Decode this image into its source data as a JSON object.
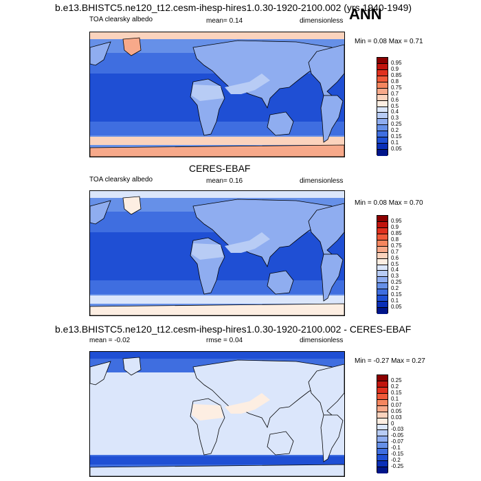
{
  "season_label": "ANN",
  "chart_data": [
    {
      "type": "heatmap",
      "title": "b.e13.BHISTC5.ne120_t12.cesm-ihesp-hires1.0.30-1920-2100.002 (yrs 1940-1949)",
      "left_label": "TOA clearsky albedo",
      "center_label": "mean=  0.14",
      "mean": 0.14,
      "right_label": "dimensionless",
      "stats_label": "Min =  0.08 Max =  0.71",
      "min": 0.08,
      "max": 0.71,
      "levels": [
        "0.95",
        "0.9",
        "0.85",
        "0.8",
        "0.75",
        "0.7",
        "0.6",
        "0.5",
        "0.4",
        "0.3",
        "0.25",
        "0.2",
        "0.15",
        "0.1",
        "0.05"
      ],
      "colors": [
        "#8b0000",
        "#c1140d",
        "#e0301e",
        "#f05a3a",
        "#f5865f",
        "#f7a98a",
        "#fbd3bd",
        "#fdeee2",
        "#dbe6fb",
        "#b8ccf5",
        "#8fadf0",
        "#6690e8",
        "#3f6ee0",
        "#1f4fd4",
        "#0a2fb8",
        "#00158a"
      ],
      "map_colors": {
        "ocean_tropics": "#1f4fd4",
        "ocean_mid": "#3f6ee0",
        "ocean_high": "#6690e8",
        "land": "#8fadf0",
        "desert": "#b8ccf5",
        "ice": "#f7a98a",
        "sea_ice": "#fbd3bd"
      }
    },
    {
      "type": "heatmap",
      "title": "CERES-EBAF",
      "left_label": "TOA clearsky albedo",
      "center_label": "mean=  0.16",
      "mean": 0.16,
      "right_label": "dimensionless",
      "stats_label": "Min =  0.08 Max =  0.70",
      "min": 0.08,
      "max": 0.7,
      "levels": [
        "0.95",
        "0.9",
        "0.85",
        "0.8",
        "0.75",
        "0.7",
        "0.6",
        "0.5",
        "0.4",
        "0.3",
        "0.25",
        "0.2",
        "0.15",
        "0.1",
        "0.05"
      ],
      "colors": [
        "#8b0000",
        "#c1140d",
        "#e0301e",
        "#f05a3a",
        "#f5865f",
        "#f7a98a",
        "#fbd3bd",
        "#fdeee2",
        "#dbe6fb",
        "#b8ccf5",
        "#8fadf0",
        "#6690e8",
        "#3f6ee0",
        "#1f4fd4",
        "#0a2fb8",
        "#00158a"
      ],
      "map_colors": {
        "ocean_tropics": "#1f4fd4",
        "ocean_mid": "#3f6ee0",
        "ocean_high": "#6690e8",
        "land": "#8fadf0",
        "desert": "#b8ccf5",
        "ice": "#fdeee2",
        "sea_ice": "#dbe6fb"
      }
    },
    {
      "type": "heatmap",
      "title": "b.e13.BHISTC5.ne120_t12.cesm-ihesp-hires1.0.30-1920-2100.002 - CERES-EBAF",
      "left_label": "mean =  -0.02",
      "mean": -0.02,
      "center_label": "rmse =   0.04",
      "rmse": 0.04,
      "right_label": "dimensionless",
      "stats_label": "Min =  -0.27 Max =  0.27",
      "min": -0.27,
      "max": 0.27,
      "levels": [
        "0.25",
        "0.2",
        "0.15",
        "0.1",
        "0.07",
        "0.05",
        "0.03",
        "0",
        "-0.03",
        "-0.05",
        "-0.07",
        "-0.1",
        "-0.15",
        "-0.2",
        "-0.25"
      ],
      "colors": [
        "#8b0000",
        "#c1140d",
        "#e0301e",
        "#f05a3a",
        "#f5865f",
        "#f7a98a",
        "#fbd3bd",
        "#fdeee2",
        "#dbe6fb",
        "#b8ccf5",
        "#8fadf0",
        "#6690e8",
        "#3f6ee0",
        "#1f4fd4",
        "#0a2fb8",
        "#00158a"
      ],
      "map_colors": {
        "ocean_tropics": "#dbe6fb",
        "ocean_mid": "#dbe6fb",
        "ocean_high": "#3f6ee0",
        "land": "#dbe6fb",
        "desert": "#fdeee2",
        "ice": "#dbe6fb",
        "sea_ice": "#1f4fd4"
      }
    }
  ]
}
